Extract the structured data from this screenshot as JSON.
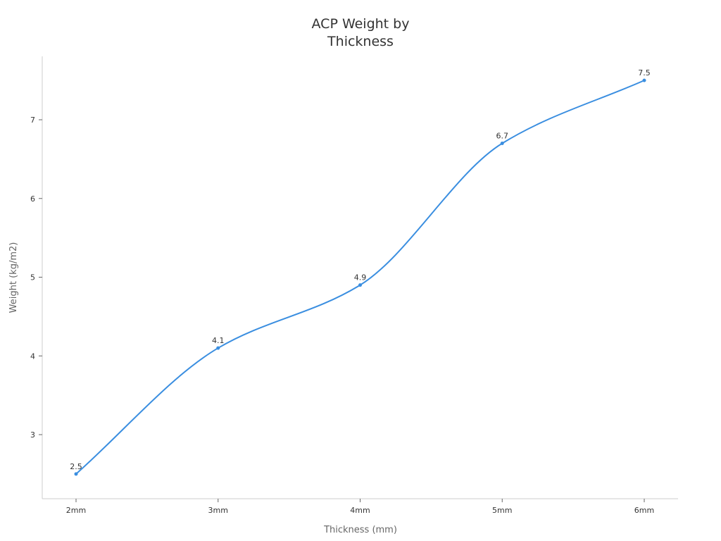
{
  "chart_data": {
    "type": "line",
    "title": [
      "ACP Weight by",
      "Thickness"
    ],
    "xlabel": "Thickness (mm)",
    "ylabel": "Weight (kg/m2)",
    "categories": [
      "2mm",
      "3mm",
      "4mm",
      "5mm",
      "6mm"
    ],
    "series": [
      {
        "values": [
          2.5,
          4.1,
          4.9,
          6.7,
          7.5
        ],
        "color": "#3a8ee0"
      }
    ],
    "yticks": [
      3,
      4,
      5,
      6,
      7
    ],
    "ylim": [
      2.2,
      7.8
    ],
    "grid": false,
    "data_labels": true,
    "smooth": true
  }
}
